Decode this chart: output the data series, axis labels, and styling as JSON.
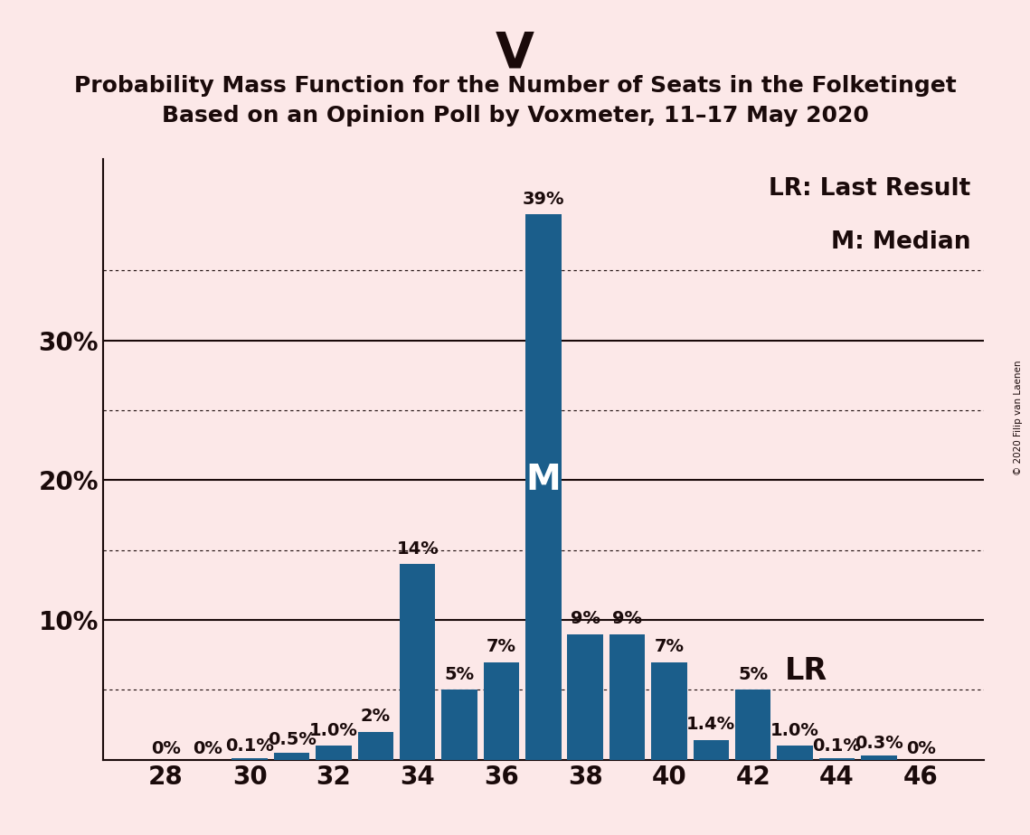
{
  "title_main": "V",
  "title_line1": "Probability Mass Function for the Number of Seats in the Folketinget",
  "title_line2": "Based on an Opinion Poll by Voxmeter, 11–17 May 2020",
  "watermark": "© 2020 Filip van Laenen",
  "seats": [
    28,
    29,
    30,
    31,
    32,
    33,
    34,
    35,
    36,
    37,
    38,
    39,
    40,
    41,
    42,
    43,
    44,
    45,
    46
  ],
  "values": [
    0.0,
    0.0,
    0.1,
    0.5,
    1.0,
    2.0,
    14.0,
    5.0,
    7.0,
    39.0,
    9.0,
    9.0,
    7.0,
    1.4,
    5.0,
    1.0,
    0.1,
    0.3,
    0.0
  ],
  "labels": [
    "0%",
    "0%",
    "0.1%",
    "0.5%",
    "1.0%",
    "2%",
    "14%",
    "5%",
    "7%",
    "39%",
    "9%",
    "9%",
    "7%",
    "1.4%",
    "5%",
    "1.0%",
    "0.1%",
    "0.3%",
    "0%"
  ],
  "bar_color": "#1b5e8b",
  "background_color": "#fce8e8",
  "median_seat": 37,
  "last_result_seat": 42,
  "ylim_max": 43,
  "solid_gridlines": [
    10,
    20,
    30
  ],
  "dotted_gridlines": [
    5,
    15,
    25,
    35
  ],
  "ytick_positions": [
    10,
    20,
    30
  ],
  "ytick_labels": [
    "10%",
    "20%",
    "30%"
  ],
  "xtick_positions": [
    28,
    30,
    32,
    34,
    36,
    38,
    40,
    42,
    44,
    46
  ],
  "legend_lr": "LR: Last Result",
  "legend_m": "M: Median",
  "title_main_fontsize": 40,
  "subtitle_fontsize": 18,
  "axis_tick_fontsize": 20,
  "legend_fontsize": 19,
  "annotation_fontsize": 14,
  "median_label_fontsize": 28,
  "lr_label_fontsize": 24,
  "bar_width": 0.85,
  "xlim": [
    26.5,
    47.5
  ]
}
